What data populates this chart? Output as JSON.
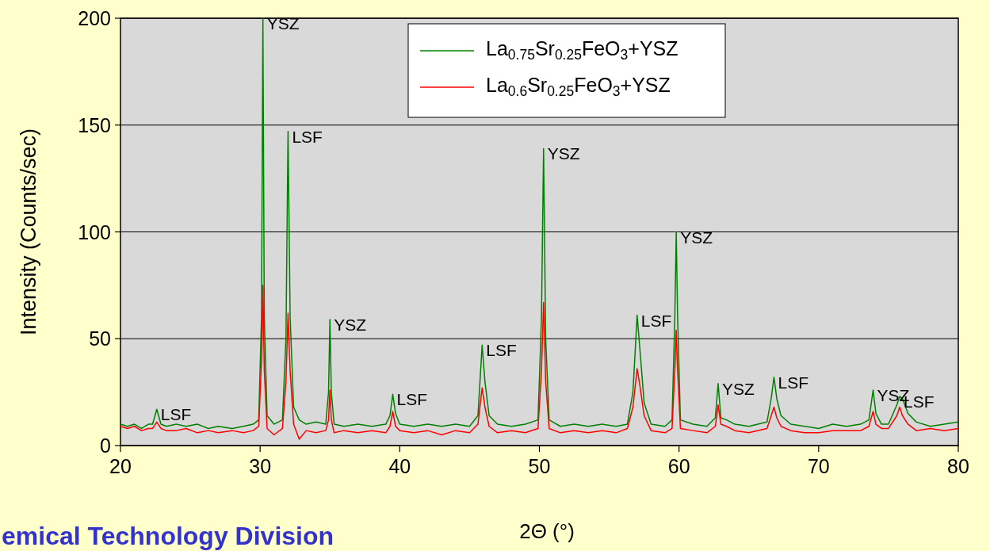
{
  "chart_data": {
    "type": "line",
    "xlabel": "2Θ (°)",
    "ylabel": "Intensity (Counts/sec)",
    "xlim": [
      20,
      80
    ],
    "xticks": [
      20,
      30,
      40,
      50,
      60,
      70,
      80
    ],
    "ylim": [
      0,
      200
    ],
    "yticks": [
      0,
      50,
      100,
      150,
      200
    ],
    "grid": "y",
    "legend": "top",
    "marker": "none",
    "line_style": "solid",
    "x": [
      20,
      20.5,
      21,
      21.5,
      22,
      22.3,
      22.6,
      22.9,
      23.3,
      24,
      24.7,
      25.5,
      26.3,
      27,
      28,
      28.8,
      29.5,
      29.9,
      30.1,
      30.2,
      30.3,
      30.5,
      31,
      31.6,
      31.85,
      32.0,
      32.15,
      32.4,
      32.8,
      33.3,
      34,
      34.7,
      34.9,
      35.0,
      35.1,
      35.3,
      36,
      37,
      38,
      39,
      39.3,
      39.5,
      39.7,
      40,
      41,
      42,
      43,
      44,
      45,
      45.6,
      45.9,
      46.1,
      46.4,
      47,
      48,
      49,
      49.9,
      50.15,
      50.3,
      50.45,
      50.7,
      51.5,
      52.5,
      53.5,
      54.5,
      55.5,
      56.3,
      56.7,
      57.0,
      57.2,
      57.5,
      58,
      59,
      59.5,
      59.7,
      59.8,
      59.9,
      60.1,
      61,
      62,
      62.6,
      62.8,
      63,
      63.4,
      64,
      65,
      66.3,
      66.6,
      66.8,
      67,
      67.3,
      68,
      69,
      70,
      71,
      72,
      73,
      73.6,
      73.9,
      74.1,
      74.5,
      75,
      75.6,
      75.8,
      76,
      76.4,
      77,
      78,
      79,
      80
    ],
    "series": [
      {
        "name": "La$_{0.75}$Sr$_{0.25}$FeO$_{3}$+YSZ",
        "color": "#008000",
        "values": [
          10,
          9,
          10,
          8,
          10,
          10,
          17,
          10,
          9,
          10,
          9,
          10,
          8,
          9,
          8,
          9,
          10,
          12,
          60,
          200,
          60,
          14,
          10,
          12,
          50,
          147,
          60,
          18,
          12,
          10,
          11,
          10,
          25,
          59,
          25,
          10,
          9,
          10,
          9,
          10,
          14,
          24,
          15,
          10,
          9,
          10,
          9,
          10,
          9,
          14,
          47,
          30,
          14,
          10,
          9,
          10,
          12,
          60,
          139,
          50,
          12,
          9,
          10,
          9,
          10,
          9,
          10,
          25,
          61,
          45,
          20,
          10,
          9,
          12,
          60,
          100,
          60,
          12,
          10,
          9,
          13,
          29,
          13,
          12,
          10,
          9,
          11,
          22,
          32,
          22,
          14,
          10,
          9,
          8,
          10,
          9,
          10,
          12,
          26,
          15,
          10,
          10,
          19,
          23,
          22,
          15,
          11,
          9,
          10,
          11
        ]
      },
      {
        "name": "La$_{0.6}$Sr$_{0.25}$FeO$_{3}$+YSZ",
        "color": "#ff0000",
        "values": [
          9,
          8,
          9,
          7,
          8,
          8,
          11,
          8,
          7,
          7,
          8,
          6,
          7,
          6,
          7,
          6,
          7,
          9,
          40,
          75,
          35,
          8,
          5,
          8,
          30,
          62,
          35,
          10,
          3,
          7,
          6,
          7,
          12,
          26,
          12,
          6,
          7,
          6,
          7,
          6,
          9,
          16,
          9,
          7,
          6,
          7,
          5,
          7,
          6,
          10,
          27,
          18,
          9,
          6,
          7,
          6,
          8,
          35,
          67,
          30,
          8,
          6,
          7,
          6,
          7,
          6,
          8,
          18,
          36,
          28,
          14,
          7,
          6,
          8,
          35,
          54,
          35,
          8,
          7,
          6,
          9,
          19,
          10,
          9,
          7,
          6,
          8,
          14,
          18,
          13,
          9,
          7,
          6,
          6,
          7,
          7,
          7,
          9,
          16,
          10,
          8,
          8,
          14,
          18,
          14,
          10,
          7,
          8,
          7,
          8
        ]
      }
    ],
    "annotations": [
      {
        "text": "YSZ",
        "x": 30.2,
        "y": 200
      },
      {
        "text": "LSF",
        "x": 32.0,
        "y": 147
      },
      {
        "text": "YSZ",
        "x": 35.0,
        "y": 59
      },
      {
        "text": "LSF",
        "x": 22.6,
        "y": 17
      },
      {
        "text": "LSF",
        "x": 39.5,
        "y": 24
      },
      {
        "text": "LSF",
        "x": 45.9,
        "y": 47
      },
      {
        "text": "YSZ",
        "x": 50.3,
        "y": 139
      },
      {
        "text": "LSF",
        "x": 57.0,
        "y": 61
      },
      {
        "text": "YSZ",
        "x": 59.8,
        "y": 100
      },
      {
        "text": "YSZ",
        "x": 62.8,
        "y": 29
      },
      {
        "text": "LSF",
        "x": 66.8,
        "y": 32
      },
      {
        "text": "YSZ",
        "x": 73.9,
        "y": 26
      },
      {
        "text": "LSF",
        "x": 75.8,
        "y": 23
      },
      "emical Technology Division"
    ]
  }
}
